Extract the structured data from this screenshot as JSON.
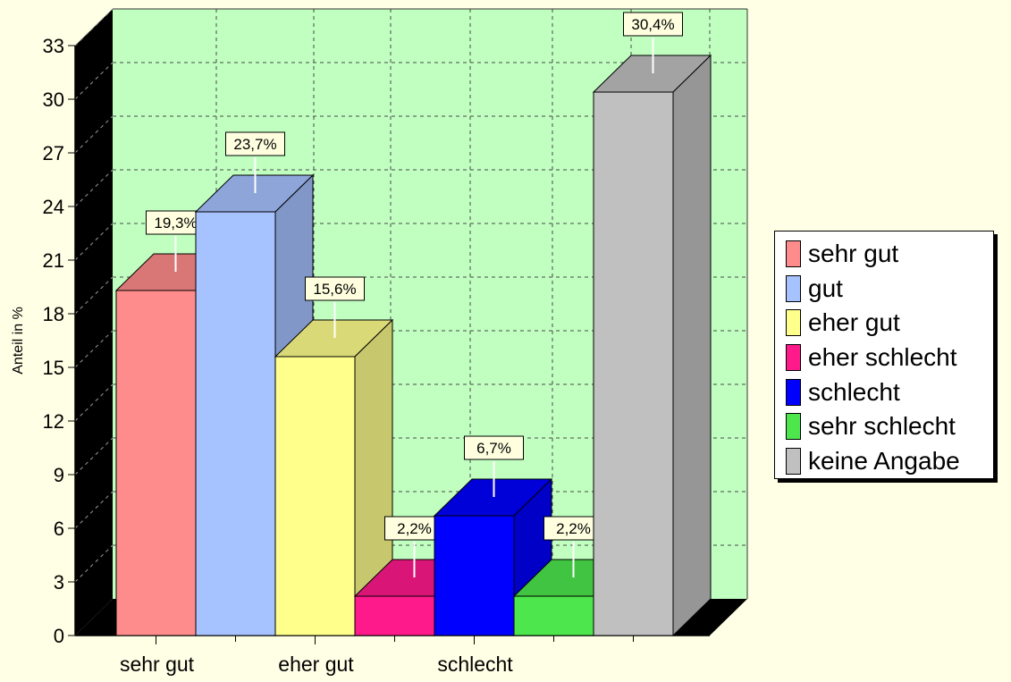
{
  "chart_data": {
    "type": "bar",
    "ylabel": "Anteil in %",
    "ylim": [
      0,
      33
    ],
    "y_ticks": [
      0,
      3,
      6,
      9,
      12,
      15,
      18,
      21,
      24,
      27,
      30,
      33
    ],
    "x_tick_labels": [
      "sehr gut",
      "eher gut",
      "schlecht"
    ],
    "grid": true,
    "three_d": true,
    "legend_position": "right",
    "categories": [
      "sehr gut",
      "gut",
      "eher gut",
      "eher schlecht",
      "schlecht",
      "sehr schlecht",
      "keine Angabe"
    ],
    "values": [
      19.3,
      23.7,
      15.6,
      2.2,
      6.7,
      2.2,
      30.4
    ],
    "data_labels": [
      "19,3%",
      "23,7%",
      "15,6%",
      "2,2%",
      "6,7%",
      "2,2%",
      "30,4%"
    ],
    "colors": [
      "#ff8c8c",
      "#a6c2ff",
      "#ffff8c",
      "#ff1a8c",
      "#0000ff",
      "#4de64d",
      "#c0c0c0"
    ]
  }
}
